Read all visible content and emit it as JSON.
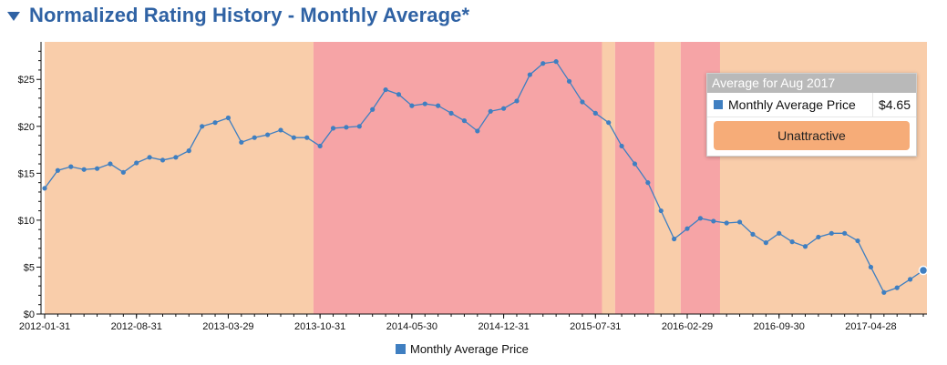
{
  "header": {
    "title": "Normalized Rating History - Monthly Average*"
  },
  "colors": {
    "line": "#3f7fc1",
    "band_unattractive": "#f9cdaa",
    "band_red": "#f6a4a6",
    "tooltip_rating": "#f6ac78"
  },
  "tooltip": {
    "title": "Average for Aug 2017",
    "series_name": "Monthly Average Price",
    "value": "$4.65",
    "rating": "Unattractive"
  },
  "legend": {
    "label": "Monthly Average Price"
  },
  "chart_data": {
    "type": "line",
    "title": "",
    "xlabel": "",
    "ylabel": "",
    "ylim": [
      0,
      29
    ],
    "y_ticks": [
      "$0",
      "$5",
      "$10",
      "$15",
      "$20",
      "$25"
    ],
    "x_ticks": [
      "2012-01-31",
      "2012-08-31",
      "2013-03-29",
      "2013-10-31",
      "2014-05-30",
      "2014-12-31",
      "2015-07-31",
      "2016-02-29",
      "2016-09-30",
      "2017-04-28"
    ],
    "grid": false,
    "legend_position": "bottom",
    "series": [
      {
        "name": "Monthly Average Price",
        "x": [
          "2012-01",
          "2012-02",
          "2012-03",
          "2012-04",
          "2012-05",
          "2012-06",
          "2012-07",
          "2012-08",
          "2012-09",
          "2012-10",
          "2012-11",
          "2012-12",
          "2013-01",
          "2013-02",
          "2013-03",
          "2013-04",
          "2013-05",
          "2013-06",
          "2013-07",
          "2013-08",
          "2013-09",
          "2013-10",
          "2013-11",
          "2013-12",
          "2014-01",
          "2014-02",
          "2014-03",
          "2014-04",
          "2014-05",
          "2014-06",
          "2014-07",
          "2014-08",
          "2014-09",
          "2014-10",
          "2014-11",
          "2014-12",
          "2015-01",
          "2015-02",
          "2015-03",
          "2015-04",
          "2015-05",
          "2015-06",
          "2015-07",
          "2015-08",
          "2015-09",
          "2015-10",
          "2015-11",
          "2015-12",
          "2016-01",
          "2016-02",
          "2016-03",
          "2016-04",
          "2016-05",
          "2016-06",
          "2016-07",
          "2016-08",
          "2016-09",
          "2016-10",
          "2016-11",
          "2016-12",
          "2017-01",
          "2017-02",
          "2017-03",
          "2017-04",
          "2017-05",
          "2017-06",
          "2017-07",
          "2017-08"
        ],
        "values": [
          13.4,
          15.3,
          15.7,
          15.4,
          15.5,
          16.0,
          15.1,
          16.1,
          16.7,
          16.4,
          16.7,
          17.4,
          20.0,
          20.4,
          20.9,
          18.3,
          18.8,
          19.1,
          19.6,
          18.8,
          18.8,
          17.9,
          19.8,
          19.9,
          20.0,
          21.8,
          23.9,
          23.4,
          22.2,
          22.4,
          22.2,
          21.4,
          20.6,
          19.5,
          21.6,
          21.9,
          22.7,
          25.5,
          26.7,
          26.9,
          24.8,
          22.6,
          21.4,
          20.4,
          17.9,
          16.0,
          14.0,
          11.0,
          8.0,
          9.1,
          10.2,
          9.9,
          9.7,
          9.8,
          8.5,
          7.6,
          8.6,
          7.7,
          7.2,
          8.2,
          8.6,
          8.6,
          7.8,
          5.0,
          2.3,
          2.8,
          3.7,
          4.65
        ]
      }
    ],
    "rating_bands": [
      {
        "from": "2012-01",
        "to": "2013-09",
        "color": "#f9cdaa"
      },
      {
        "from": "2013-09",
        "to": "2015-07",
        "color": "#f6a4a6"
      },
      {
        "from": "2015-07",
        "to": "2015-08",
        "color": "#f9cdaa"
      },
      {
        "from": "2015-08",
        "to": "2015-11",
        "color": "#f6a4a6"
      },
      {
        "from": "2015-11",
        "to": "2016-01",
        "color": "#f9cdaa"
      },
      {
        "from": "2016-01",
        "to": "2016-04",
        "color": "#f6a4a6"
      },
      {
        "from": "2016-04",
        "to": "2017-08",
        "color": "#f9cdaa"
      }
    ],
    "highlighted_point": "2017-08"
  }
}
